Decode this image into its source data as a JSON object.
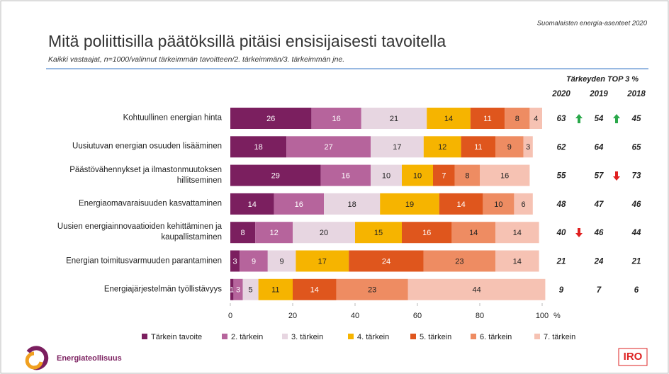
{
  "header": {
    "source": "Suomalaisten energia-asenteet 2020",
    "title": "Mitä poliittisilla päätöksillä pitäisi ensisijaisesti tavoitella",
    "subtitle": "Kaikki vastaajat, n=1000/valinnut tärkeimmän tavoitteen/2. tärkeimmän/3. tärkeimmän jne."
  },
  "chart_data": {
    "type": "stacked_barh",
    "categories": [
      "Kohtuullinen energian hinta",
      "Uusiutuvan energian osuuden lisääminen",
      "Päästövähennykset ja ilmastonmuutoksen\nhillitseminen",
      "Energiaomavaraisuuden kasvattaminen",
      "Uusien energiainnovaatioiden kehittäminen ja\nkaupallistaminen",
      "Energian toimitusvarmuuden parantaminen",
      "Energiajärjestelmän työllistävyys"
    ],
    "series": [
      {
        "name": "Tärkein tavoite",
        "color": "#7b1f5f",
        "values": [
          26,
          18,
          29,
          14,
          8,
          3,
          1
        ]
      },
      {
        "name": "2. tärkein",
        "color": "#b6649c",
        "values": [
          16,
          27,
          16,
          16,
          12,
          9,
          3
        ]
      },
      {
        "name": "3. tärkein",
        "color": "#e7d6e1",
        "values": [
          21,
          17,
          10,
          18,
          20,
          9,
          5
        ]
      },
      {
        "name": "4. tärkein",
        "color": "#f6b400",
        "values": [
          14,
          12,
          10,
          19,
          15,
          17,
          11
        ]
      },
      {
        "name": "5. tärkein",
        "color": "#df561d",
        "values": [
          11,
          11,
          7,
          14,
          16,
          24,
          14
        ]
      },
      {
        "name": "6. tärkein",
        "color": "#ee8c62",
        "values": [
          8,
          9,
          8,
          10,
          14,
          23,
          23
        ]
      },
      {
        "name": "7. tärkein",
        "color": "#f6c2b3",
        "values": [
          4,
          3,
          16,
          6,
          14,
          14,
          44
        ]
      }
    ],
    "xlim": [
      0,
      100
    ],
    "xticks": [
      0,
      20,
      40,
      60,
      80,
      100
    ],
    "xunit": "%",
    "top3": {
      "title": "Tärkeyden TOP 3 %",
      "columns": [
        "2020",
        "2019",
        "2018"
      ],
      "rows": [
        [
          63,
          54,
          45
        ],
        [
          62,
          64,
          65
        ],
        [
          55,
          57,
          73
        ],
        [
          48,
          47,
          46
        ],
        [
          40,
          46,
          44
        ],
        [
          21,
          24,
          21
        ],
        [
          9,
          7,
          6
        ]
      ]
    }
  },
  "footer": {
    "logo": "Energiateollisuus",
    "brand": "IRO"
  }
}
